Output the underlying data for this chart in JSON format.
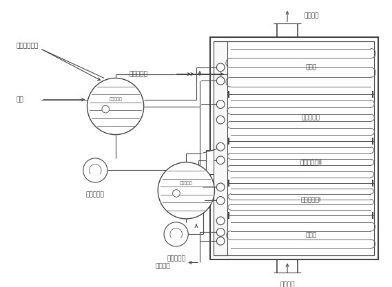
{
  "line_color": "#444444",
  "lw": 0.8,
  "lw_thick": 1.2,
  "bg_color": "#ffffff",
  "section_labels": [
    "省煤器",
    "低压蒸发器",
    "高压蒸发器II",
    "高压蒸发器I",
    "过热器"
  ],
  "top_label": "烟气出口",
  "bottom_label": "烟气进口",
  "deaerator_water_label": "除氧器给水",
  "superheated_steam_label": "过热蒸汽",
  "lp_sat_steam_label": "低压饱和蒸汽",
  "feed_water_label": "给水",
  "lp_pump_label": "热水循环泵",
  "hp_pump_label": "热水循环泵",
  "lp_drum_label": "低压蒸汽包",
  "hp_drum_label": "高压蒸汽包",
  "font_size": 6.5,
  "coil_color": "#666666",
  "coil_lw": 0.7
}
